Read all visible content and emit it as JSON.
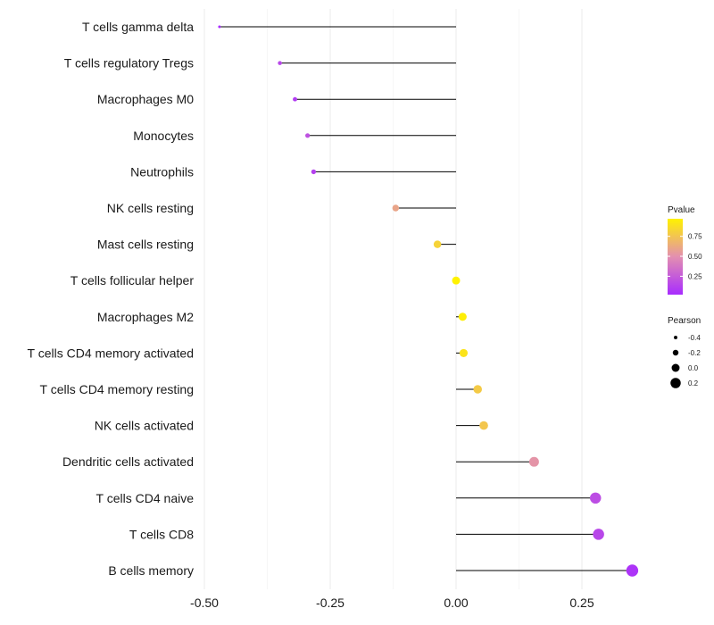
{
  "chart_data": {
    "type": "lollipop",
    "title": "",
    "xlabel": "",
    "ylabel": "",
    "xlim": [
      -0.5,
      0.38
    ],
    "x_ticks": [
      -0.5,
      -0.25,
      0.0,
      0.25
    ],
    "x_tick_labels": [
      "-0.50",
      "-0.25",
      "0.00",
      "0.25"
    ],
    "grid": true,
    "categories": [
      "T cells gamma delta",
      "T cells regulatory  Tregs",
      "Macrophages M0",
      "Monocytes",
      "Neutrophils",
      "NK cells resting",
      "Mast cells resting",
      "T cells follicular helper",
      "Macrophages M2",
      "T cells CD4 memory activated",
      "T cells CD4 memory resting",
      "NK cells activated",
      "Dendritic cells activated",
      "T cells CD4 naive",
      "T cells CD8",
      "B cells memory"
    ],
    "pearson": [
      -0.47,
      -0.35,
      -0.32,
      -0.295,
      -0.283,
      -0.12,
      -0.037,
      0.0,
      0.013,
      0.015,
      0.043,
      0.055,
      0.155,
      0.277,
      0.283,
      0.35
    ],
    "pvalue": [
      0.02,
      0.15,
      0.1,
      0.2,
      0.12,
      0.6,
      0.82,
      0.97,
      0.95,
      0.9,
      0.78,
      0.76,
      0.52,
      0.18,
      0.15,
      0.06
    ],
    "color_scale": {
      "title": "Pvalue",
      "low_color": "#a82cff",
      "mid_color": "#e38fb0",
      "high_color": "#fff200",
      "ticks": [
        0.25,
        0.5,
        0.75
      ],
      "tick_labels": [
        "0.25",
        "0.50",
        "0.75"
      ],
      "range": [
        0.02,
        0.97
      ]
    },
    "size_scale": {
      "title": "Pearson",
      "values": [
        -0.4,
        -0.2,
        0.0,
        0.2
      ],
      "labels": [
        "-0.4",
        "-0.2",
        "0.0",
        "0.2"
      ]
    }
  }
}
